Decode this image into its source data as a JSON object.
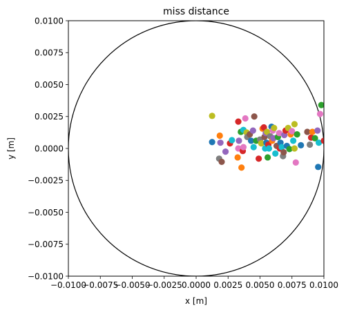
{
  "chart_data": {
    "type": "scatter",
    "title": "miss distance",
    "xlabel": "x [m]",
    "ylabel": "y [m]",
    "xlim": [
      -0.01,
      0.01
    ],
    "ylim": [
      -0.01,
      0.01
    ],
    "grid": false,
    "xticks": [
      -0.01,
      -0.0075,
      -0.005,
      -0.0025,
      0.0,
      0.0025,
      0.005,
      0.0075,
      0.01
    ],
    "yticks": [
      -0.01,
      -0.0075,
      -0.005,
      -0.0025,
      0.0,
      0.0025,
      0.005,
      0.0075,
      0.01
    ],
    "xtick_labels": [
      "−0.0100",
      "−0.0075",
      "−0.0050",
      "−0.0025",
      "0.0000",
      "0.0025",
      "0.0050",
      "0.0075",
      "0.0100"
    ],
    "ytick_labels": [
      "−0.0100",
      "−0.0075",
      "−0.0050",
      "−0.0025",
      "0.0000",
      "0.0025",
      "0.0050",
      "0.0075",
      "0.0100"
    ],
    "circle": {
      "center": [
        0.0,
        0.0
      ],
      "radius": 0.01,
      "color": "#000000"
    },
    "palette": [
      "#1f77b4",
      "#ff7f0e",
      "#2ca02c",
      "#d62728",
      "#9467bd",
      "#8c564b",
      "#e377c2",
      "#7f7f7f",
      "#bcbd22",
      "#17becf"
    ],
    "points": [
      {
        "x": 0.00125,
        "y": 0.00255,
        "c": 8
      },
      {
        "x": 0.00125,
        "y": 0.0005,
        "c": 0
      },
      {
        "x": 0.00185,
        "y": 0.001,
        "c": 1
      },
      {
        "x": 0.0019,
        "y": 0.00045,
        "c": 4
      },
      {
        "x": 0.0018,
        "y": -0.0008,
        "c": 7
      },
      {
        "x": 0.002,
        "y": -0.00105,
        "c": 5
      },
      {
        "x": 0.0023,
        "y": -0.00025,
        "c": 4
      },
      {
        "x": 0.00265,
        "y": 0.0004,
        "c": 3
      },
      {
        "x": 0.0028,
        "y": 0.00065,
        "c": 9
      },
      {
        "x": 0.00325,
        "y": -0.0007,
        "c": 1
      },
      {
        "x": 0.0033,
        "y": 0.0021,
        "c": 3
      },
      {
        "x": 0.0033,
        "y": 0.0,
        "c": 6
      },
      {
        "x": 0.00335,
        "y": 0.0006,
        "c": 4
      },
      {
        "x": 0.0035,
        "y": 0.0013,
        "c": 2
      },
      {
        "x": 0.00355,
        "y": -0.0015,
        "c": 1
      },
      {
        "x": 0.00365,
        "y": -0.0002,
        "c": 3
      },
      {
        "x": 0.0037,
        "y": 0.00145,
        "c": 9
      },
      {
        "x": 0.0037,
        "y": 0.0001,
        "c": 6
      },
      {
        "x": 0.00385,
        "y": 0.00235,
        "c": 6
      },
      {
        "x": 0.00395,
        "y": 0.00125,
        "c": 8
      },
      {
        "x": 0.004,
        "y": 0.0009,
        "c": 7
      },
      {
        "x": 0.0042,
        "y": 0.0011,
        "c": 5
      },
      {
        "x": 0.0043,
        "y": 0.0006,
        "c": 0
      },
      {
        "x": 0.00445,
        "y": 0.0014,
        "c": 4
      },
      {
        "x": 0.0045,
        "y": 0.0001,
        "c": 9
      },
      {
        "x": 0.00455,
        "y": 0.0025,
        "c": 5
      },
      {
        "x": 0.0047,
        "y": 0.0006,
        "c": 2
      },
      {
        "x": 0.0049,
        "y": -0.0008,
        "c": 3
      },
      {
        "x": 0.005,
        "y": 0.0007,
        "c": 7
      },
      {
        "x": 0.0051,
        "y": 0.0004,
        "c": 8
      },
      {
        "x": 0.0052,
        "y": 0.00155,
        "c": 1
      },
      {
        "x": 0.0053,
        "y": 0.00165,
        "c": 3
      },
      {
        "x": 0.00535,
        "y": 0.0009,
        "c": 5
      },
      {
        "x": 0.0054,
        "y": 0.0,
        "c": 9
      },
      {
        "x": 0.00545,
        "y": 0.0012,
        "c": 4
      },
      {
        "x": 0.0055,
        "y": 0.00045,
        "c": 0
      },
      {
        "x": 0.00555,
        "y": 0.0013,
        "c": 8
      },
      {
        "x": 0.0056,
        "y": -0.0007,
        "c": 2
      },
      {
        "x": 0.00565,
        "y": 0.0003,
        "c": 3
      },
      {
        "x": 0.0057,
        "y": 0.0,
        "c": 9
      },
      {
        "x": 0.0058,
        "y": 0.00095,
        "c": 7
      },
      {
        "x": 0.0059,
        "y": 0.0017,
        "c": 0
      },
      {
        "x": 0.00595,
        "y": 0.0006,
        "c": 1
      },
      {
        "x": 0.006,
        "y": 0.0014,
        "c": 6
      },
      {
        "x": 0.00605,
        "y": 0.0008,
        "c": 4
      },
      {
        "x": 0.0061,
        "y": 0.0016,
        "c": 8
      },
      {
        "x": 0.0062,
        "y": -0.0004,
        "c": 9
      },
      {
        "x": 0.0063,
        "y": 0.0002,
        "c": 5
      },
      {
        "x": 0.0064,
        "y": 0.0009,
        "c": 2
      },
      {
        "x": 0.0065,
        "y": 0.0012,
        "c": 6
      },
      {
        "x": 0.00655,
        "y": 0.0,
        "c": 3
      },
      {
        "x": 0.0066,
        "y": 0.00045,
        "c": 0
      },
      {
        "x": 0.0067,
        "y": 0.0001,
        "c": 9
      },
      {
        "x": 0.0068,
        "y": -0.0006,
        "c": 7
      },
      {
        "x": 0.00685,
        "y": -0.0003,
        "c": 5
      },
      {
        "x": 0.0069,
        "y": 0.00105,
        "c": 4
      },
      {
        "x": 0.007,
        "y": 0.0014,
        "c": 3
      },
      {
        "x": 0.0071,
        "y": 0.0002,
        "c": 0
      },
      {
        "x": 0.0072,
        "y": 0.0016,
        "c": 8
      },
      {
        "x": 0.0073,
        "y": -5e-05,
        "c": 2
      },
      {
        "x": 0.0074,
        "y": 0.0011,
        "c": 1
      },
      {
        "x": 0.0075,
        "y": 0.00135,
        "c": 6
      },
      {
        "x": 0.0076,
        "y": 0.0006,
        "c": 9
      },
      {
        "x": 0.0077,
        "y": 0.0019,
        "c": 8
      },
      {
        "x": 0.0077,
        "y": 0.0,
        "c": 8
      },
      {
        "x": 0.0078,
        "y": -0.0011,
        "c": 6
      },
      {
        "x": 0.0079,
        "y": 0.0011,
        "c": 2
      },
      {
        "x": 0.0082,
        "y": 0.00025,
        "c": 0
      },
      {
        "x": 0.0087,
        "y": 0.0013,
        "c": 5
      },
      {
        "x": 0.0089,
        "y": 0.0003,
        "c": 7
      },
      {
        "x": 0.009,
        "y": 0.00085,
        "c": 3
      },
      {
        "x": 0.0091,
        "y": 0.0013,
        "c": 1
      },
      {
        "x": 0.0093,
        "y": 0.0008,
        "c": 2
      },
      {
        "x": 0.0095,
        "y": 0.0014,
        "c": 4
      },
      {
        "x": 0.0096,
        "y": 0.00045,
        "c": 9
      },
      {
        "x": 0.00955,
        "y": -0.00145,
        "c": 0
      },
      {
        "x": 0.0097,
        "y": 0.0027,
        "c": 6
      },
      {
        "x": 0.0098,
        "y": 0.0034,
        "c": 2
      },
      {
        "x": 0.01,
        "y": 0.0006,
        "c": 3
      }
    ]
  }
}
